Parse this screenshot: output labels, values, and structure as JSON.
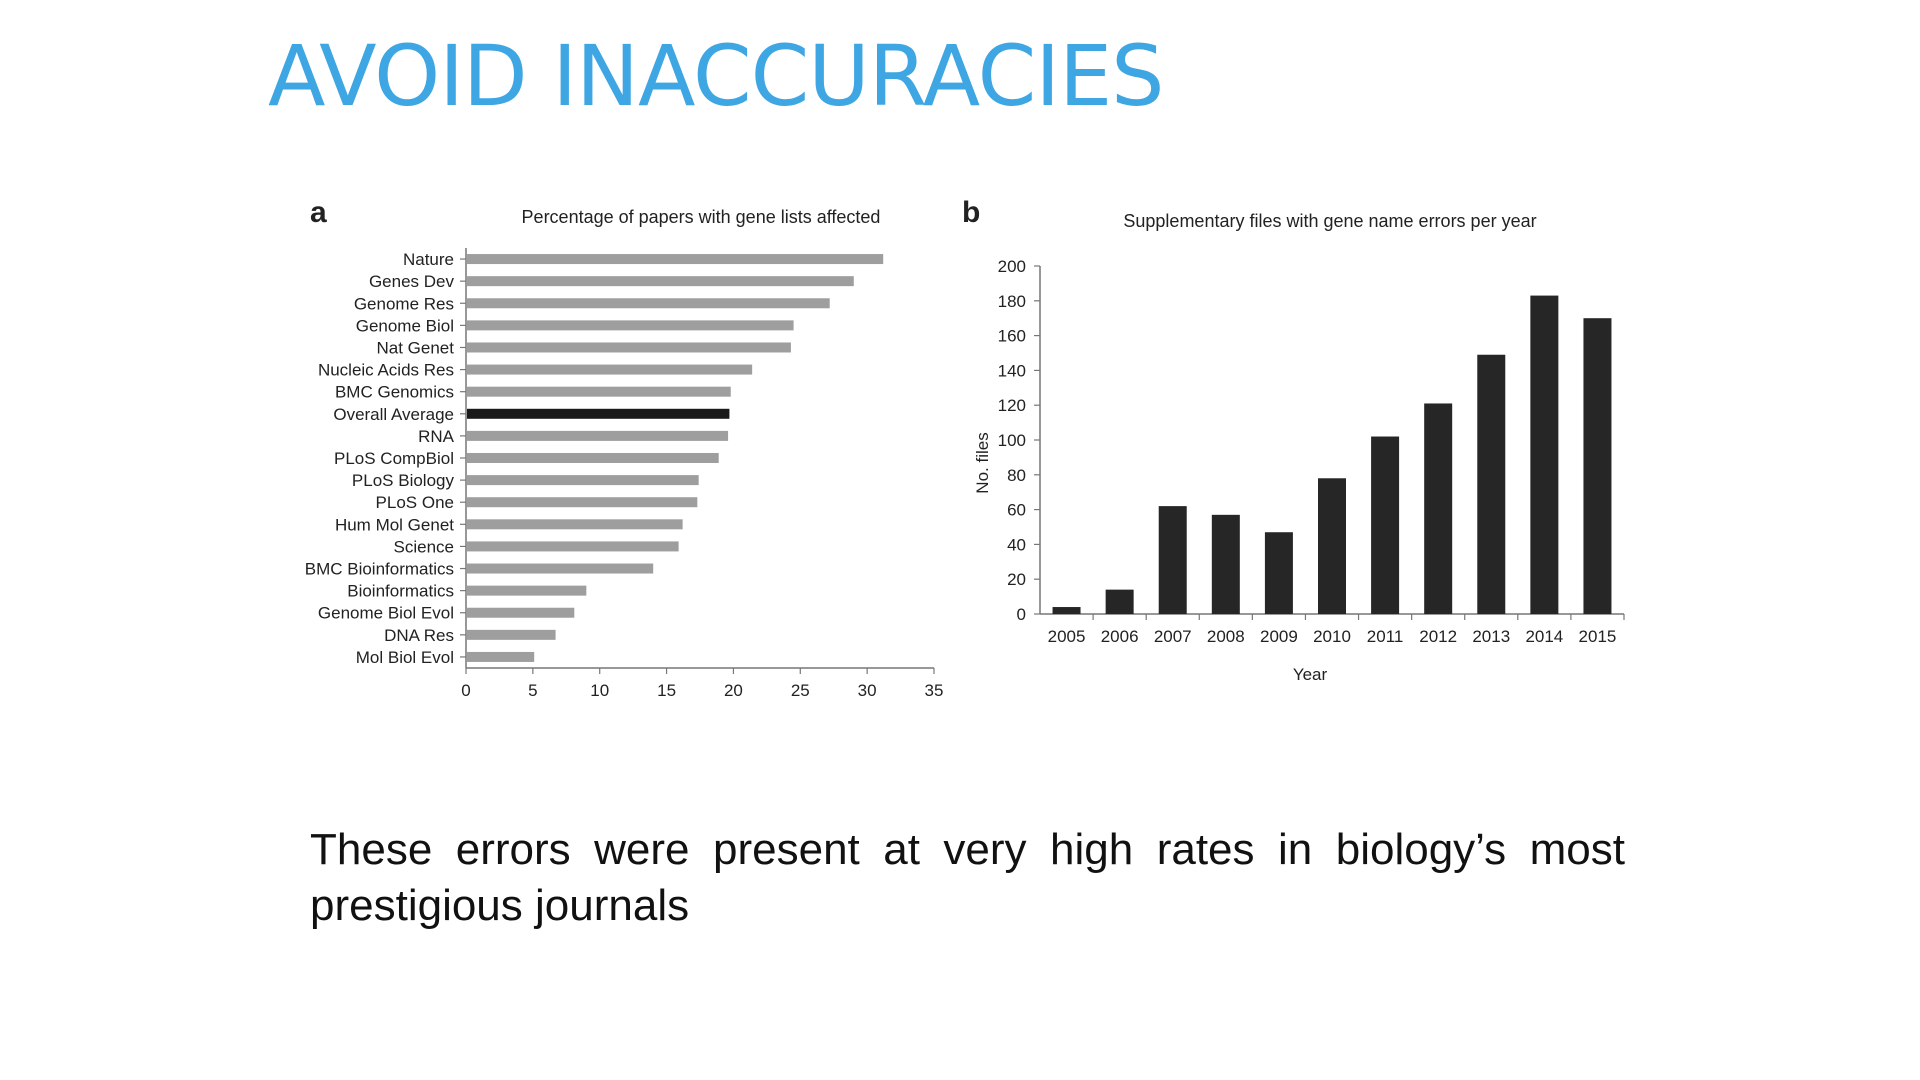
{
  "slide": {
    "title": "AVOID INACCURACIES",
    "body": "These errors were present at very high rates in biology’s most prestigious journals"
  },
  "colors": {
    "title": "#3ea6e3",
    "bar_a": "#9e9e9e",
    "bar_a_highlight": "#1a1a1a",
    "bar_b": "#262626"
  },
  "chart_data": [
    {
      "panel": "a",
      "type": "bar",
      "orientation": "horizontal",
      "title": "Percentage of papers with gene lists affected",
      "categories": [
        "Nature",
        "Genes Dev",
        "Genome Res",
        "Genome Biol",
        "Nat Genet",
        "Nucleic Acids Res",
        "BMC Genomics",
        "Overall Average",
        "RNA",
        "PLoS CompBiol",
        "PLoS Biology",
        "PLoS One",
        "Hum Mol Genet",
        "Science",
        "BMC Bioinformatics",
        "Bioinformatics",
        "Genome Biol Evol",
        "DNA Res",
        "Mol Biol Evol"
      ],
      "values": [
        31.2,
        29.0,
        27.2,
        24.5,
        24.3,
        21.4,
        19.8,
        19.7,
        19.6,
        18.9,
        17.4,
        17.3,
        16.2,
        15.9,
        14.0,
        9.0,
        8.1,
        6.7,
        5.1
      ],
      "highlight": "Overall Average",
      "xlim": [
        0,
        35
      ],
      "xticks": [
        "0",
        "5",
        "10",
        "15",
        "20",
        "25",
        "30",
        "35"
      ],
      "xlabel": "",
      "ylabel": "",
      "grid": false
    },
    {
      "panel": "b",
      "type": "bar",
      "title": "Supplementary files with gene name errors per year",
      "categories": [
        "2005",
        "2006",
        "2007",
        "2008",
        "2009",
        "2010",
        "2011",
        "2012",
        "2013",
        "2014",
        "2015"
      ],
      "values": [
        4,
        14,
        62,
        57,
        47,
        78,
        102,
        121,
        149,
        183,
        170
      ],
      "ylim": [
        0,
        200
      ],
      "yticks": [
        "0",
        "20",
        "40",
        "60",
        "80",
        "100",
        "120",
        "140",
        "160",
        "180",
        "200"
      ],
      "xlabel": "Year",
      "ylabel": "No. files",
      "grid": false
    }
  ]
}
